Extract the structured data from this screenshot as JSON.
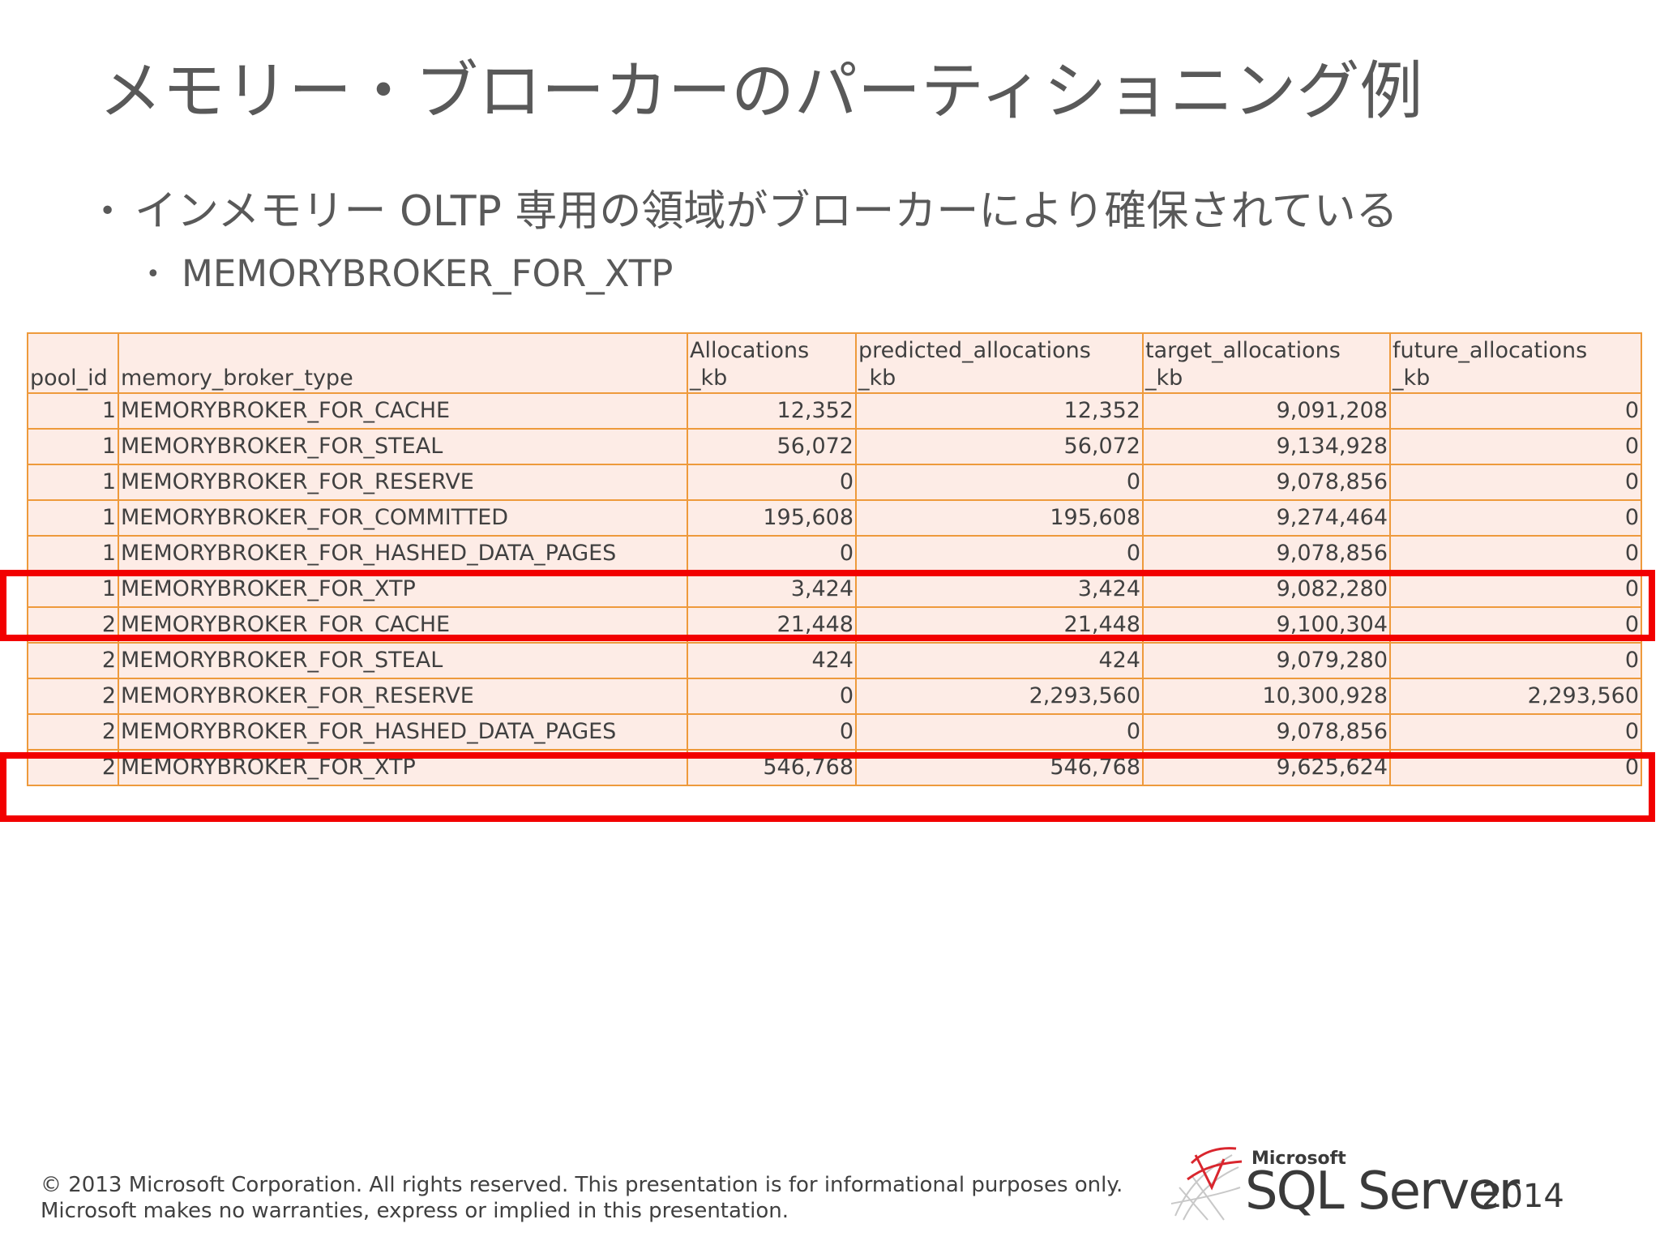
{
  "slide": {
    "title": "メモリー・ブローカーのパーティショニング例",
    "bullet1": "インメモリー OLTP 専用の領域がブローカーにより確保されている",
    "bullet2": "MEMORYBROKER_FOR_XTP"
  },
  "table": {
    "headers": [
      [
        "",
        "pool_id"
      ],
      [
        "",
        "memory_broker_type"
      ],
      [
        "Allocations",
        "_kb"
      ],
      [
        "predicted_allocations",
        "_kb"
      ],
      [
        "target_allocations",
        "_kb"
      ],
      [
        "future_allocations",
        "_kb"
      ]
    ],
    "rows": [
      [
        "1",
        "MEMORYBROKER_FOR_CACHE",
        "12,352",
        "12,352",
        "9,091,208",
        "0"
      ],
      [
        "1",
        "MEMORYBROKER_FOR_STEAL",
        "56,072",
        "56,072",
        "9,134,928",
        "0"
      ],
      [
        "1",
        "MEMORYBROKER_FOR_RESERVE",
        "0",
        "0",
        "9,078,856",
        "0"
      ],
      [
        "1",
        "MEMORYBROKER_FOR_COMMITTED",
        "195,608",
        "195,608",
        "9,274,464",
        "0"
      ],
      [
        "1",
        "MEMORYBROKER_FOR_HASHED_DATA_PAGES",
        "0",
        "0",
        "9,078,856",
        "0"
      ],
      [
        "1",
        "MEMORYBROKER_FOR_XTP",
        "3,424",
        "3,424",
        "9,082,280",
        "0"
      ],
      [
        "2",
        "MEMORYBROKER_FOR_CACHE",
        "21,448",
        "21,448",
        "9,100,304",
        "0"
      ],
      [
        "2",
        "MEMORYBROKER_FOR_STEAL",
        "424",
        "424",
        "9,079,280",
        "0"
      ],
      [
        "2",
        "MEMORYBROKER_FOR_RESERVE",
        "0",
        "2,293,560",
        "10,300,928",
        "2,293,560"
      ],
      [
        "2",
        "MEMORYBROKER_FOR_HASHED_DATA_PAGES",
        "0",
        "0",
        "9,078,856",
        "0"
      ],
      [
        "2",
        "MEMORYBROKER_FOR_XTP",
        "546,768",
        "546,768",
        "9,625,624",
        "0"
      ]
    ]
  },
  "footer": {
    "line1": "© 2013 Microsoft Corporation.  All rights reserved.  This presentation is for informational purposes only.",
    "line2": "Microsoft makes no warranties, express or implied in this presentation."
  },
  "logo": {
    "brand": "Microsoft",
    "product": "SQL Server",
    "year": "2014",
    "icon": "sql-server-logo-icon"
  },
  "colors": {
    "cell_fill": "#fdece6",
    "cell_border": "#ee9a3c",
    "highlight": "#f20000",
    "text": "#595959"
  }
}
